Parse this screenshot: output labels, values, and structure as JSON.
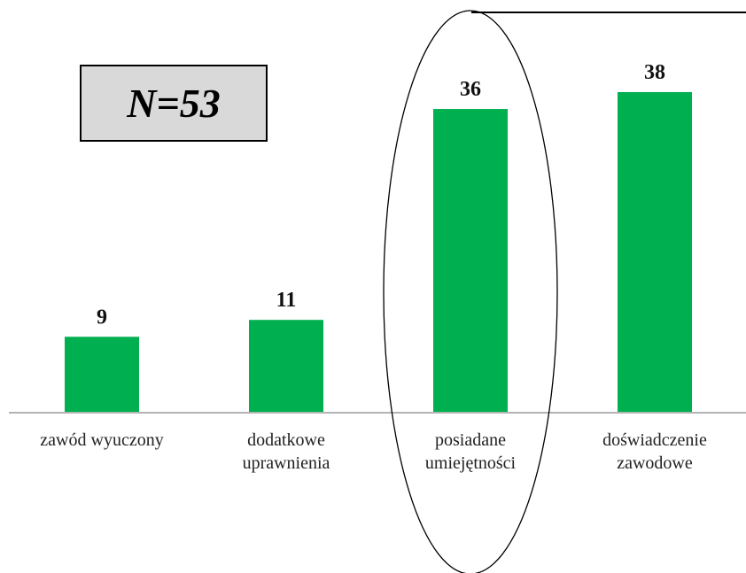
{
  "chart_data": {
    "type": "bar",
    "categories": [
      [
        "zawód wyuczony"
      ],
      [
        "dodatkowe",
        "uprawnienia"
      ],
      [
        "posiadane",
        "umiejętności"
      ],
      [
        "doświadczenie",
        "zawodowe"
      ]
    ],
    "values": [
      9,
      11,
      36,
      38
    ],
    "ylim": [
      0,
      38
    ],
    "bar_color": "#00b050",
    "highlighted_category_index": 2,
    "annotation": "N=53"
  }
}
